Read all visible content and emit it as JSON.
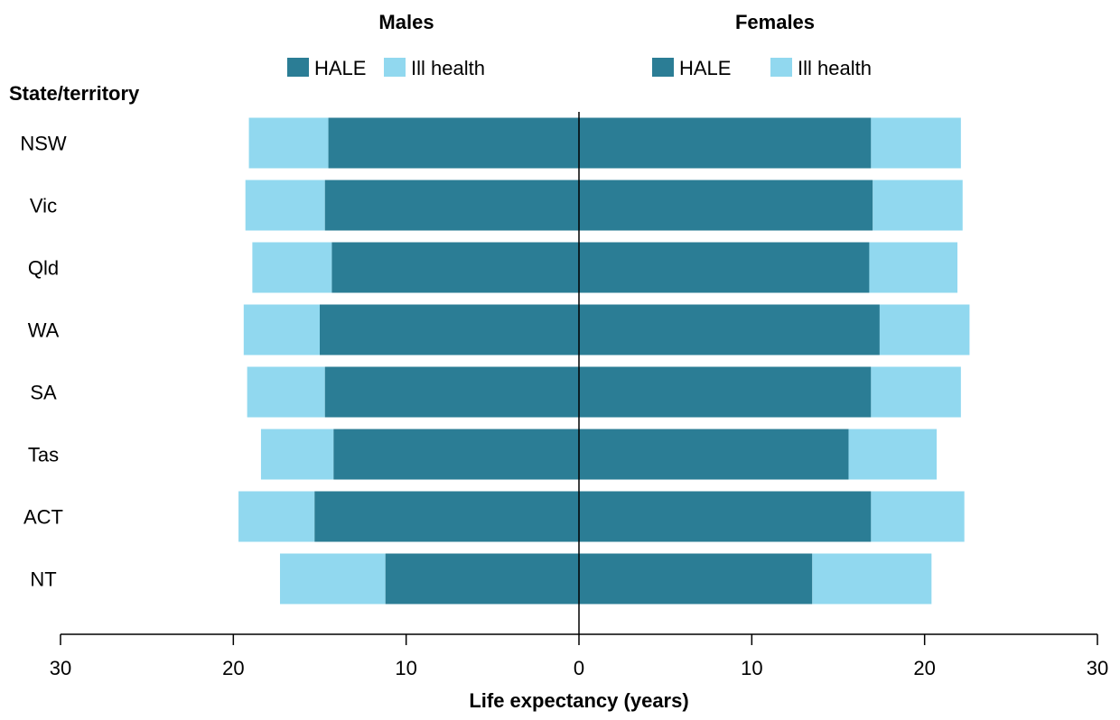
{
  "chart_data": {
    "type": "bar",
    "orientation": "horizontal-diverging",
    "panels": [
      {
        "name": "Males",
        "side": "left"
      },
      {
        "name": "Females",
        "side": "right"
      }
    ],
    "categories_label": "State/territory",
    "categories": [
      "NSW",
      "Vic",
      "Qld",
      "WA",
      "SA",
      "Tas",
      "ACT",
      "NT"
    ],
    "series": [
      {
        "name": "HALE",
        "color": "#2b7d95"
      },
      {
        "name": "Ill health",
        "color": "#91d8ef"
      }
    ],
    "values": {
      "Males": {
        "HALE": [
          14.5,
          14.7,
          14.3,
          15.0,
          14.7,
          14.2,
          15.3,
          11.2
        ],
        "Ill health": [
          4.6,
          4.6,
          4.6,
          4.4,
          4.5,
          4.2,
          4.4,
          6.1
        ]
      },
      "Females": {
        "HALE": [
          16.9,
          17.0,
          16.8,
          17.4,
          16.9,
          15.6,
          16.9,
          13.5
        ],
        "Ill health": [
          5.2,
          5.2,
          5.1,
          5.2,
          5.2,
          5.1,
          5.4,
          6.9
        ]
      }
    },
    "xlabel": "Life expectancy (years)",
    "xticks": [
      30,
      20,
      10,
      0,
      10,
      20,
      30
    ],
    "xlim": [
      -30,
      30
    ],
    "grid": false,
    "legend_position": "top"
  }
}
